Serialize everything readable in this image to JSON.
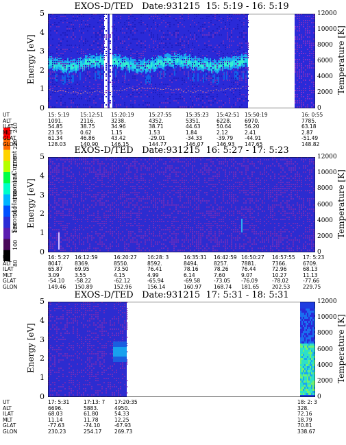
{
  "colorbar": {
    "label": "Second Harmonic Current",
    "ticks": [
      "240",
      "220",
      "200",
      "180",
      "160",
      "140",
      "120",
      "100",
      "80"
    ],
    "colors": [
      "#ff0000",
      "#ff6a00",
      "#ffd400",
      "#b5ff00",
      "#00ff46",
      "#00ffc8",
      "#00b4ff",
      "#0050ff",
      "#2b2bd6",
      "#5a1cb0",
      "#4a0a5a",
      "#000000"
    ]
  },
  "chart_data": [
    {
      "type": "heatmap",
      "title": "EXOS-D/TED   Date:931215  15: 5:19 - 16: 5:19",
      "ylabel": "Energy [eV]",
      "y2label": "Temperature [K]",
      "ylim": [
        0,
        5
      ],
      "y2lim": [
        0,
        12000
      ],
      "yticks": [
        "5",
        "4",
        "3",
        "2",
        "1",
        "0"
      ],
      "y2ticks": [
        "12000",
        "10000",
        "8000",
        "6000",
        "4000",
        "2000",
        "0"
      ],
      "orbit": {
        "row_labels": [
          "UT",
          "ALT",
          "ILAT",
          "MLT",
          "GLAT",
          "GLON"
        ],
        "columns": [
          [
            "15: 5:19",
            "1091.",
            "54.85",
            "23.55",
            "61.34",
            "128.03"
          ],
          [
            "15:12:51",
            "2116.",
            "38.75",
            "0.62",
            "46.86",
            "140.90"
          ],
          [
            "15:20:19",
            "3238.",
            "34.96",
            "1.15",
            "43.42",
            "146.15"
          ],
          [
            "15:27:55",
            "4352.",
            "38.71",
            "1.53",
            "-29.01",
            "144.77"
          ],
          [
            "15:35:23",
            "5351.",
            "44.63",
            "1.84",
            "-34.33",
            "146.07"
          ],
          [
            "15:42:51",
            "6228.",
            "50.64",
            "2.12",
            "-39.79",
            "146.93"
          ],
          [
            "15:50:19",
            "6970.",
            "56.20",
            "2.41",
            "-44.91",
            "147.65"
          ],
          [
            "16: 0:55",
            "7785.",
            "63.18",
            "2.87",
            "-51.49",
            "148.82"
          ]
        ]
      }
    },
    {
      "type": "heatmap",
      "title": "EXOS-D/TED   Date:931215  16: 5:27 - 17: 5:23",
      "ylabel": "Energy [eV]",
      "y2label": "Temperature [K]",
      "ylim": [
        0,
        5
      ],
      "y2lim": [
        0,
        12000
      ],
      "yticks": [
        "5",
        "4",
        "3",
        "2",
        "1",
        "0"
      ],
      "y2ticks": [
        "12000",
        "10000",
        "8000",
        "6000",
        "4000",
        "2000",
        "0"
      ],
      "orbit": {
        "row_labels": [
          "UT",
          "ALT",
          "ILAT",
          "MLT",
          "GLAT",
          "GLON"
        ],
        "columns": [
          [
            "16: 5:27",
            "8047.",
            "65.87",
            "3.09",
            "-54.10",
            "149.46"
          ],
          [
            "16:12:59",
            "8369.",
            "69.95",
            "3.55",
            "-58.22",
            "150.89"
          ],
          [
            "16:20:27",
            "8550.",
            "73.50",
            "4.15",
            "-62.12",
            "152.96"
          ],
          [
            "16:28: 3",
            "8592.",
            "76.41",
            "4.99",
            "-65.94",
            "156.14"
          ],
          [
            "16:35:31",
            "8494.",
            "78.16",
            "6.14",
            "-69.58",
            "160.97"
          ],
          [
            "16:42:59",
            "8257.",
            "78.26",
            "7.60",
            "-73.05",
            "168.74"
          ],
          [
            "16:50:27",
            "7881.",
            "76.44",
            "9.07",
            "-76.09",
            "181.65"
          ],
          [
            "16:57:55",
            "7366.",
            "72.96",
            "10.27",
            "-78.02",
            "202.53"
          ],
          [
            "17: 5:23",
            "6709.",
            "68.13",
            "11.13",
            "-77.66",
            "229.75"
          ]
        ]
      }
    },
    {
      "type": "heatmap",
      "title": "EXOS-D/TED   Date:931215  17: 5:31 - 18: 5:31",
      "ylabel": "Energy [eV]",
      "y2label": "Temperature [K]",
      "ylim": [
        0,
        5
      ],
      "y2lim": [
        0,
        12000
      ],
      "yticks": [
        "5",
        "4",
        "3",
        "2",
        "1",
        "0"
      ],
      "y2ticks": [
        "12000",
        "10000",
        "8000",
        "6000",
        "4000",
        "2000",
        "0"
      ],
      "orbit": {
        "row_labels": [
          "UT",
          "ALT",
          "ILAT",
          "MLT",
          "GLAT",
          "GLON"
        ],
        "columns": [
          [
            "17: 5:31",
            "6696.",
            "68.03",
            "11.14",
            "-77.63",
            "230.23"
          ],
          [
            "17:13: 7",
            "5883.",
            "61.80",
            "11.78",
            "-74.10",
            "254.17"
          ],
          [
            "17:20:35",
            "4950.",
            "54.33",
            "12.25",
            "-67.93",
            "269.73"
          ],
          [
            "18: 2: 3",
            "328.",
            "72.16",
            "18.79",
            "70.81",
            "338.67"
          ]
        ]
      }
    }
  ]
}
